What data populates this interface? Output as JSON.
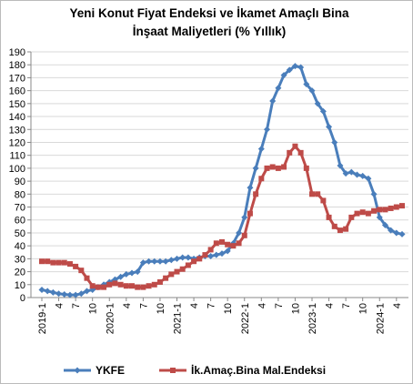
{
  "chart_data": {
    "type": "line",
    "title": [
      "Yeni Konut Fiyat Endeksi ve İkamet Amaçlı Bina",
      "İnşaat Maliyetleri (% Yıllık)"
    ],
    "categories": [
      "2019-1",
      null,
      null,
      "4",
      null,
      null,
      "7",
      null,
      null,
      "10",
      null,
      null,
      "2020-1",
      null,
      null,
      "4",
      null,
      null,
      "7",
      null,
      null,
      "10",
      null,
      null,
      "2021-1",
      null,
      null,
      "4",
      null,
      null,
      "7",
      null,
      null,
      "10",
      null,
      null,
      "2022-1",
      null,
      null,
      "4",
      null,
      null,
      "7",
      null,
      null,
      "10",
      null,
      null,
      "2023-1",
      null,
      null,
      "4",
      null,
      null,
      "7",
      null,
      null,
      "10",
      null,
      null,
      "2024-1",
      null,
      null,
      "4",
      null
    ],
    "series": [
      {
        "name": "YKFE",
        "color": "#4a7ebb",
        "marker": "diamond",
        "values": [
          6,
          5,
          4,
          3,
          2.5,
          2,
          2,
          3,
          5,
          6,
          8,
          10,
          12,
          14,
          16,
          18,
          19,
          20,
          27,
          28,
          28,
          28,
          28,
          29,
          30,
          31,
          31,
          30,
          31,
          32,
          32,
          33,
          34,
          36,
          42,
          50,
          62,
          85,
          100,
          115,
          130,
          152,
          162,
          172,
          176,
          179,
          178,
          165,
          160,
          150,
          144,
          132,
          120,
          102,
          96,
          97,
          95,
          94,
          92,
          80,
          62,
          56,
          52,
          50,
          49
        ]
      },
      {
        "name": "İk.Amaç.Bina Mal.Endeksi",
        "color": "#be4b48",
        "marker": "square",
        "values": [
          28,
          28,
          27,
          27,
          27,
          26,
          24,
          21,
          15,
          9,
          8,
          8,
          10,
          11,
          10,
          9,
          9,
          8,
          8,
          9,
          10,
          12,
          15,
          18,
          20,
          22,
          25,
          28,
          30,
          33,
          37,
          42,
          43,
          41,
          40,
          42,
          48,
          65,
          80,
          92,
          100,
          101,
          100,
          101,
          112,
          117,
          112,
          100,
          80,
          80,
          75,
          62,
          55,
          52,
          53,
          62,
          65,
          66,
          65,
          67,
          68,
          68,
          69,
          70,
          71
        ]
      }
    ],
    "ylim": [
      0,
      190
    ],
    "yticks": [
      0,
      10,
      20,
      30,
      40,
      50,
      60,
      70,
      80,
      90,
      100,
      110,
      120,
      130,
      140,
      150,
      160,
      170,
      180,
      190
    ],
    "grid": true,
    "legend": "bottom"
  }
}
